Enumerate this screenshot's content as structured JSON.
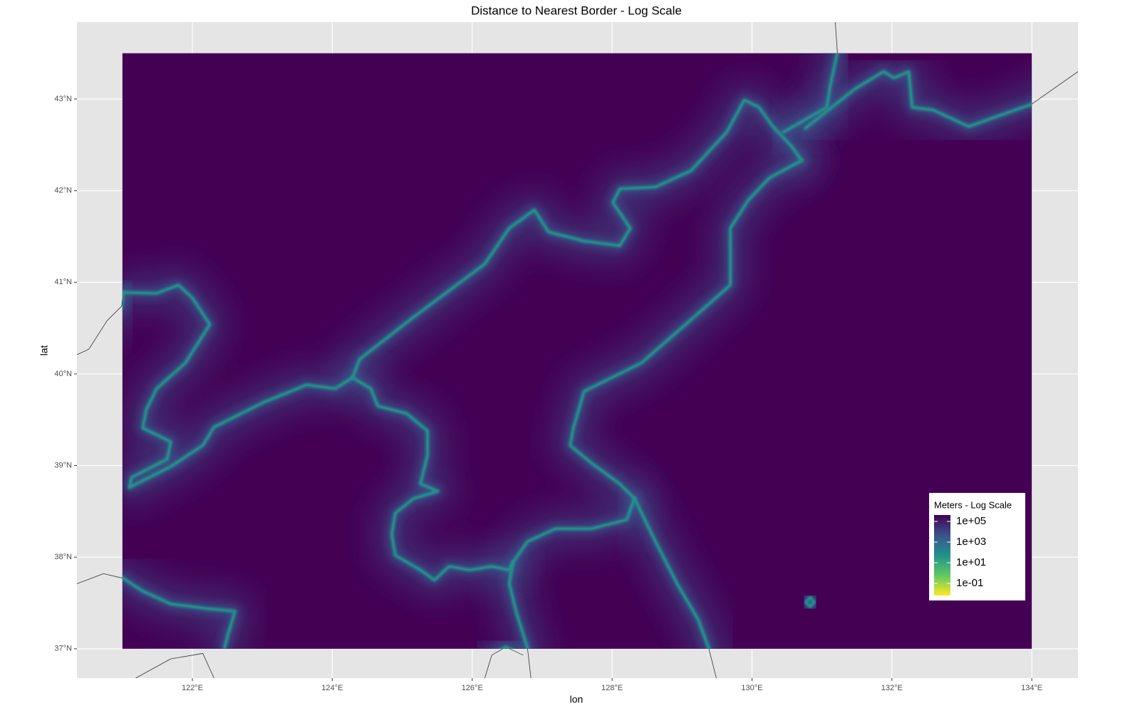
{
  "chart_data": {
    "type": "raster",
    "title": "Distance to Nearest Border - Log Scale",
    "x_label": "lon",
    "y_label": "lat",
    "xlim": [
      120.35,
      134.66
    ],
    "ylim": [
      36.68,
      43.84
    ],
    "xticks": [
      {
        "value": 122,
        "label": "122°E"
      },
      {
        "value": 124,
        "label": "124°E"
      },
      {
        "value": 126,
        "label": "126°E"
      },
      {
        "value": 128,
        "label": "128°E"
      },
      {
        "value": 130,
        "label": "130°E"
      },
      {
        "value": 132,
        "label": "132°E"
      },
      {
        "value": 134,
        "label": "134°E"
      }
    ],
    "yticks": [
      {
        "value": 37,
        "label": "37°N"
      },
      {
        "value": 38,
        "label": "38°N"
      },
      {
        "value": 39,
        "label": "39°N"
      },
      {
        "value": 40,
        "label": "40°N"
      },
      {
        "value": 41,
        "label": "41°N"
      },
      {
        "value": 42,
        "label": "42°N"
      },
      {
        "value": 43,
        "label": "43°N"
      }
    ],
    "grid": true,
    "raster_xlim": [
      121.0,
      134.0
    ],
    "raster_ylim": [
      37.0,
      43.5
    ],
    "border_color": "#333333",
    "borders": [
      {
        "x": [
          121.01,
          121.49,
          121.8,
          122.0,
          122.25,
          121.9,
          121.49,
          121.34,
          121.29,
          121.69,
          121.64,
          121.13,
          121.1,
          121.69,
          122.15,
          122.31,
          123.02,
          123.63,
          124.04,
          124.29,
          124.39,
          125.16,
          126.18,
          126.53,
          126.89,
          127.09,
          127.6,
          128.11,
          128.26,
          128.01,
          128.11,
          128.62,
          129.13,
          129.64,
          129.89,
          130.1,
          130.3,
          130.56,
          130.71
        ],
        "y": [
          40.89,
          40.88,
          40.97,
          40.83,
          40.54,
          40.12,
          39.84,
          39.61,
          39.41,
          39.26,
          39.07,
          38.87,
          38.76,
          38.99,
          39.22,
          39.42,
          39.69,
          39.88,
          39.84,
          39.96,
          40.16,
          40.62,
          41.2,
          41.59,
          41.79,
          41.55,
          41.45,
          41.4,
          41.59,
          41.87,
          42.02,
          42.04,
          42.22,
          42.64,
          42.99,
          42.91,
          42.7,
          42.49,
          42.33
        ]
      },
      {
        "x": [
          130.45,
          131.07,
          131.12,
          131.22,
          131.19
        ],
        "y": [
          42.64,
          42.91,
          43.15,
          43.51,
          43.84
        ]
      },
      {
        "x": [
          130.76,
          131.47,
          131.88,
          132.03,
          132.24,
          132.29,
          132.59,
          133.1,
          133.61,
          133.99,
          134.66
        ],
        "y": [
          42.68,
          43.11,
          43.3,
          43.23,
          43.3,
          42.91,
          42.88,
          42.7,
          42.84,
          42.94,
          43.3
        ]
      },
      {
        "x": [
          130.71,
          130.25,
          129.95,
          129.69,
          129.69,
          129.23,
          128.42,
          127.6,
          127.45,
          127.4,
          127.7,
          128.11,
          128.32,
          128.21,
          127.7,
          127.19,
          126.79,
          126.58,
          126.53,
          126.63,
          126.79,
          126.84
        ],
        "y": [
          42.33,
          42.14,
          41.9,
          41.59,
          40.97,
          40.66,
          40.12,
          39.81,
          39.42,
          39.22,
          39.03,
          38.8,
          38.64,
          38.41,
          38.31,
          38.31,
          38.17,
          37.94,
          37.71,
          37.4,
          37.01,
          36.68
        ]
      },
      {
        "x": [
          128.32,
          128.62,
          128.93,
          129.23,
          129.38,
          129.49
        ],
        "y": [
          38.64,
          38.17,
          37.71,
          37.32,
          37.01,
          36.68
        ]
      },
      {
        "x": [
          124.29,
          124.55,
          124.65,
          125.06,
          125.36,
          125.36,
          125.26,
          125.51,
          125.16,
          124.9,
          124.85,
          124.9,
          125.26,
          125.46,
          125.67,
          125.97,
          126.28,
          126.53,
          126.58
        ],
        "y": [
          39.96,
          39.84,
          39.65,
          39.57,
          39.38,
          39.11,
          38.8,
          38.72,
          38.64,
          38.48,
          38.25,
          38.02,
          37.86,
          37.75,
          37.9,
          37.86,
          37.9,
          37.86,
          37.94
        ]
      },
      {
        "x": [
          120.35,
          120.73,
          121.01,
          121.29,
          121.69,
          122.2,
          122.61,
          122.51,
          122.46
        ],
        "y": [
          37.71,
          37.82,
          37.77,
          37.63,
          37.49,
          37.44,
          37.41,
          37.16,
          37.01
        ]
      },
      {
        "x": [
          121.19,
          121.69,
          122.15,
          122.31
        ],
        "y": [
          36.68,
          36.89,
          36.95,
          36.68
        ]
      },
      {
        "x": [
          120.35,
          120.52,
          120.78,
          120.99,
          121.01
        ],
        "y": [
          40.21,
          40.27,
          40.58,
          40.74,
          40.89
        ]
      },
      {
        "x": [
          130.77,
          130.83,
          130.89,
          130.83,
          130.77
        ],
        "y": [
          37.51,
          37.56,
          37.51,
          37.46,
          37.51
        ]
      },
      {
        "x": [
          126.18,
          126.28,
          126.48,
          126.73
        ],
        "y": [
          36.68,
          36.93,
          37.02,
          36.93
        ]
      }
    ],
    "legend": {
      "title": "Meters - Log Scale",
      "position": "bottom-right",
      "log_scale": true,
      "lim": [
        0.0068,
        420000
      ],
      "ticks": [
        {
          "value": 100000,
          "label": "1e+05"
        },
        {
          "value": 1000,
          "label": "1e+03"
        },
        {
          "value": 10,
          "label": "1e+01"
        },
        {
          "value": 0.1,
          "label": "1e-01"
        }
      ],
      "colors": [
        "#fde725",
        "#5ec962",
        "#21918c",
        "#3b528b",
        "#440154"
      ]
    }
  }
}
